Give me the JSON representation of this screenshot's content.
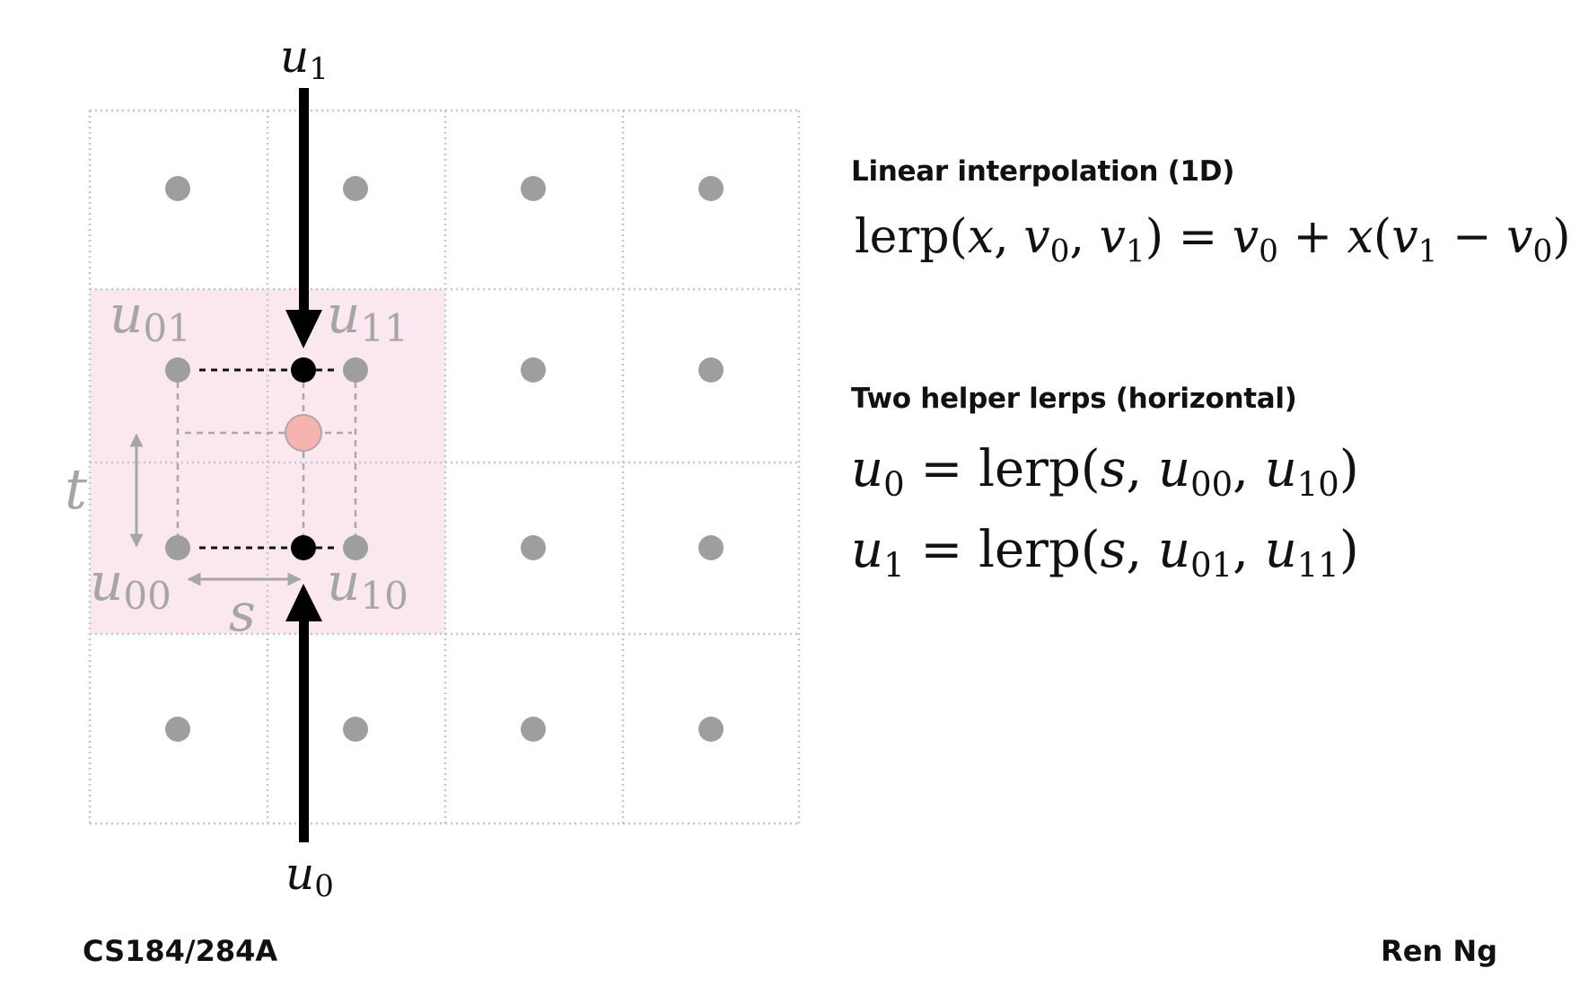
{
  "diagram": {
    "labels": {
      "u1_top": "u1",
      "u0_bottom": "u0",
      "u01": "u01",
      "u11": "u11",
      "u00": "u00",
      "u10": "u10",
      "t": "t",
      "s": "s"
    },
    "colors": {
      "grid": "#c6c6c6",
      "sample_dot": "#9e9e9e",
      "highlight": "#fbe7f0",
      "arrow": "#000000",
      "helper_dot": "#000000",
      "result_dot": "#f6b4b0",
      "label_gray": "#a6a6a6"
    }
  },
  "sections": {
    "lerp": {
      "heading": "Linear interpolation (1D)",
      "formula": "lerp(x, v0, v1) = v0 + x(v1 − v0)"
    },
    "helpers": {
      "heading": "Two helper lerps (horizontal)",
      "formula_u0": "u0 = lerp(s, u00, u10)",
      "formula_u1": "u1 = lerp(s, u01, u11)"
    }
  },
  "footer": {
    "course": "CS184/284A",
    "author": "Ren Ng"
  }
}
